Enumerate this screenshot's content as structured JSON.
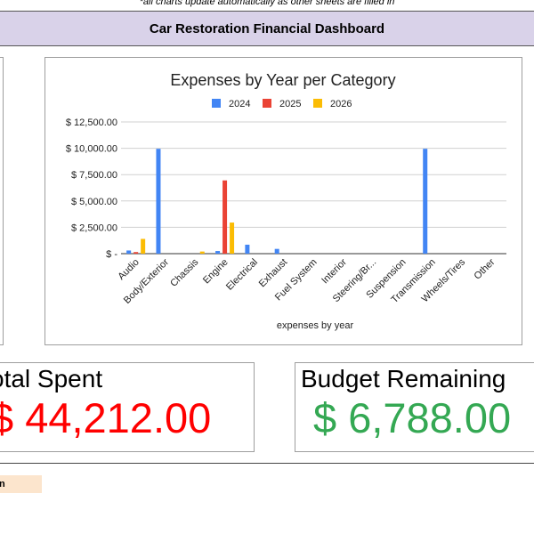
{
  "note": "*all charts update automatically as other sheets are filled in",
  "header": {
    "title": "Car Restoration Financial Dashboard"
  },
  "cards": {
    "total_label": "otal Spent",
    "total_value": "$ 44,212.00",
    "budget_label": "Budget Remaining",
    "budget_value": "$ 6,788.00"
  },
  "footer": {
    "peach_text": "n"
  },
  "colors": {
    "2024": "#4285f4",
    "2025": "#ea4335",
    "2026": "#fbbc04",
    "total": "#ff0000",
    "budget": "#34a853"
  },
  "chart_data": {
    "type": "bar",
    "title": "Expenses by Year per Category",
    "xlabel": "expenses by year",
    "ylabel": "",
    "legend_position": "top",
    "grid": true,
    "ylim": [
      0,
      12500
    ],
    "yticks": [
      0,
      2500,
      5000,
      7500,
      10000,
      12500
    ],
    "ytick_labels": [
      "$ -",
      "$ 2,500.00",
      "$ 5,000.00",
      "$ 7,500.00",
      "$ 10,000.00",
      "$ 12,500.00"
    ],
    "categories": [
      "Audio",
      "Body/Exterior",
      "Chassis",
      "Engine",
      "Electrical",
      "Exhaust",
      "Fuel System",
      "Interior",
      "Steering/Br...",
      "Suspension",
      "Transmission",
      "Wheels/Tires",
      "Other"
    ],
    "series": [
      {
        "name": "2024",
        "color": "#4285f4",
        "values": [
          300,
          9950,
          0,
          250,
          850,
          450,
          0,
          0,
          0,
          0,
          9950,
          0,
          0
        ]
      },
      {
        "name": "2025",
        "color": "#ea4335",
        "values": [
          150,
          0,
          0,
          6950,
          0,
          0,
          0,
          0,
          0,
          0,
          0,
          0,
          0
        ]
      },
      {
        "name": "2026",
        "color": "#fbbc04",
        "values": [
          1400,
          0,
          200,
          2950,
          0,
          0,
          0,
          0,
          0,
          0,
          0,
          0,
          0
        ]
      }
    ]
  }
}
